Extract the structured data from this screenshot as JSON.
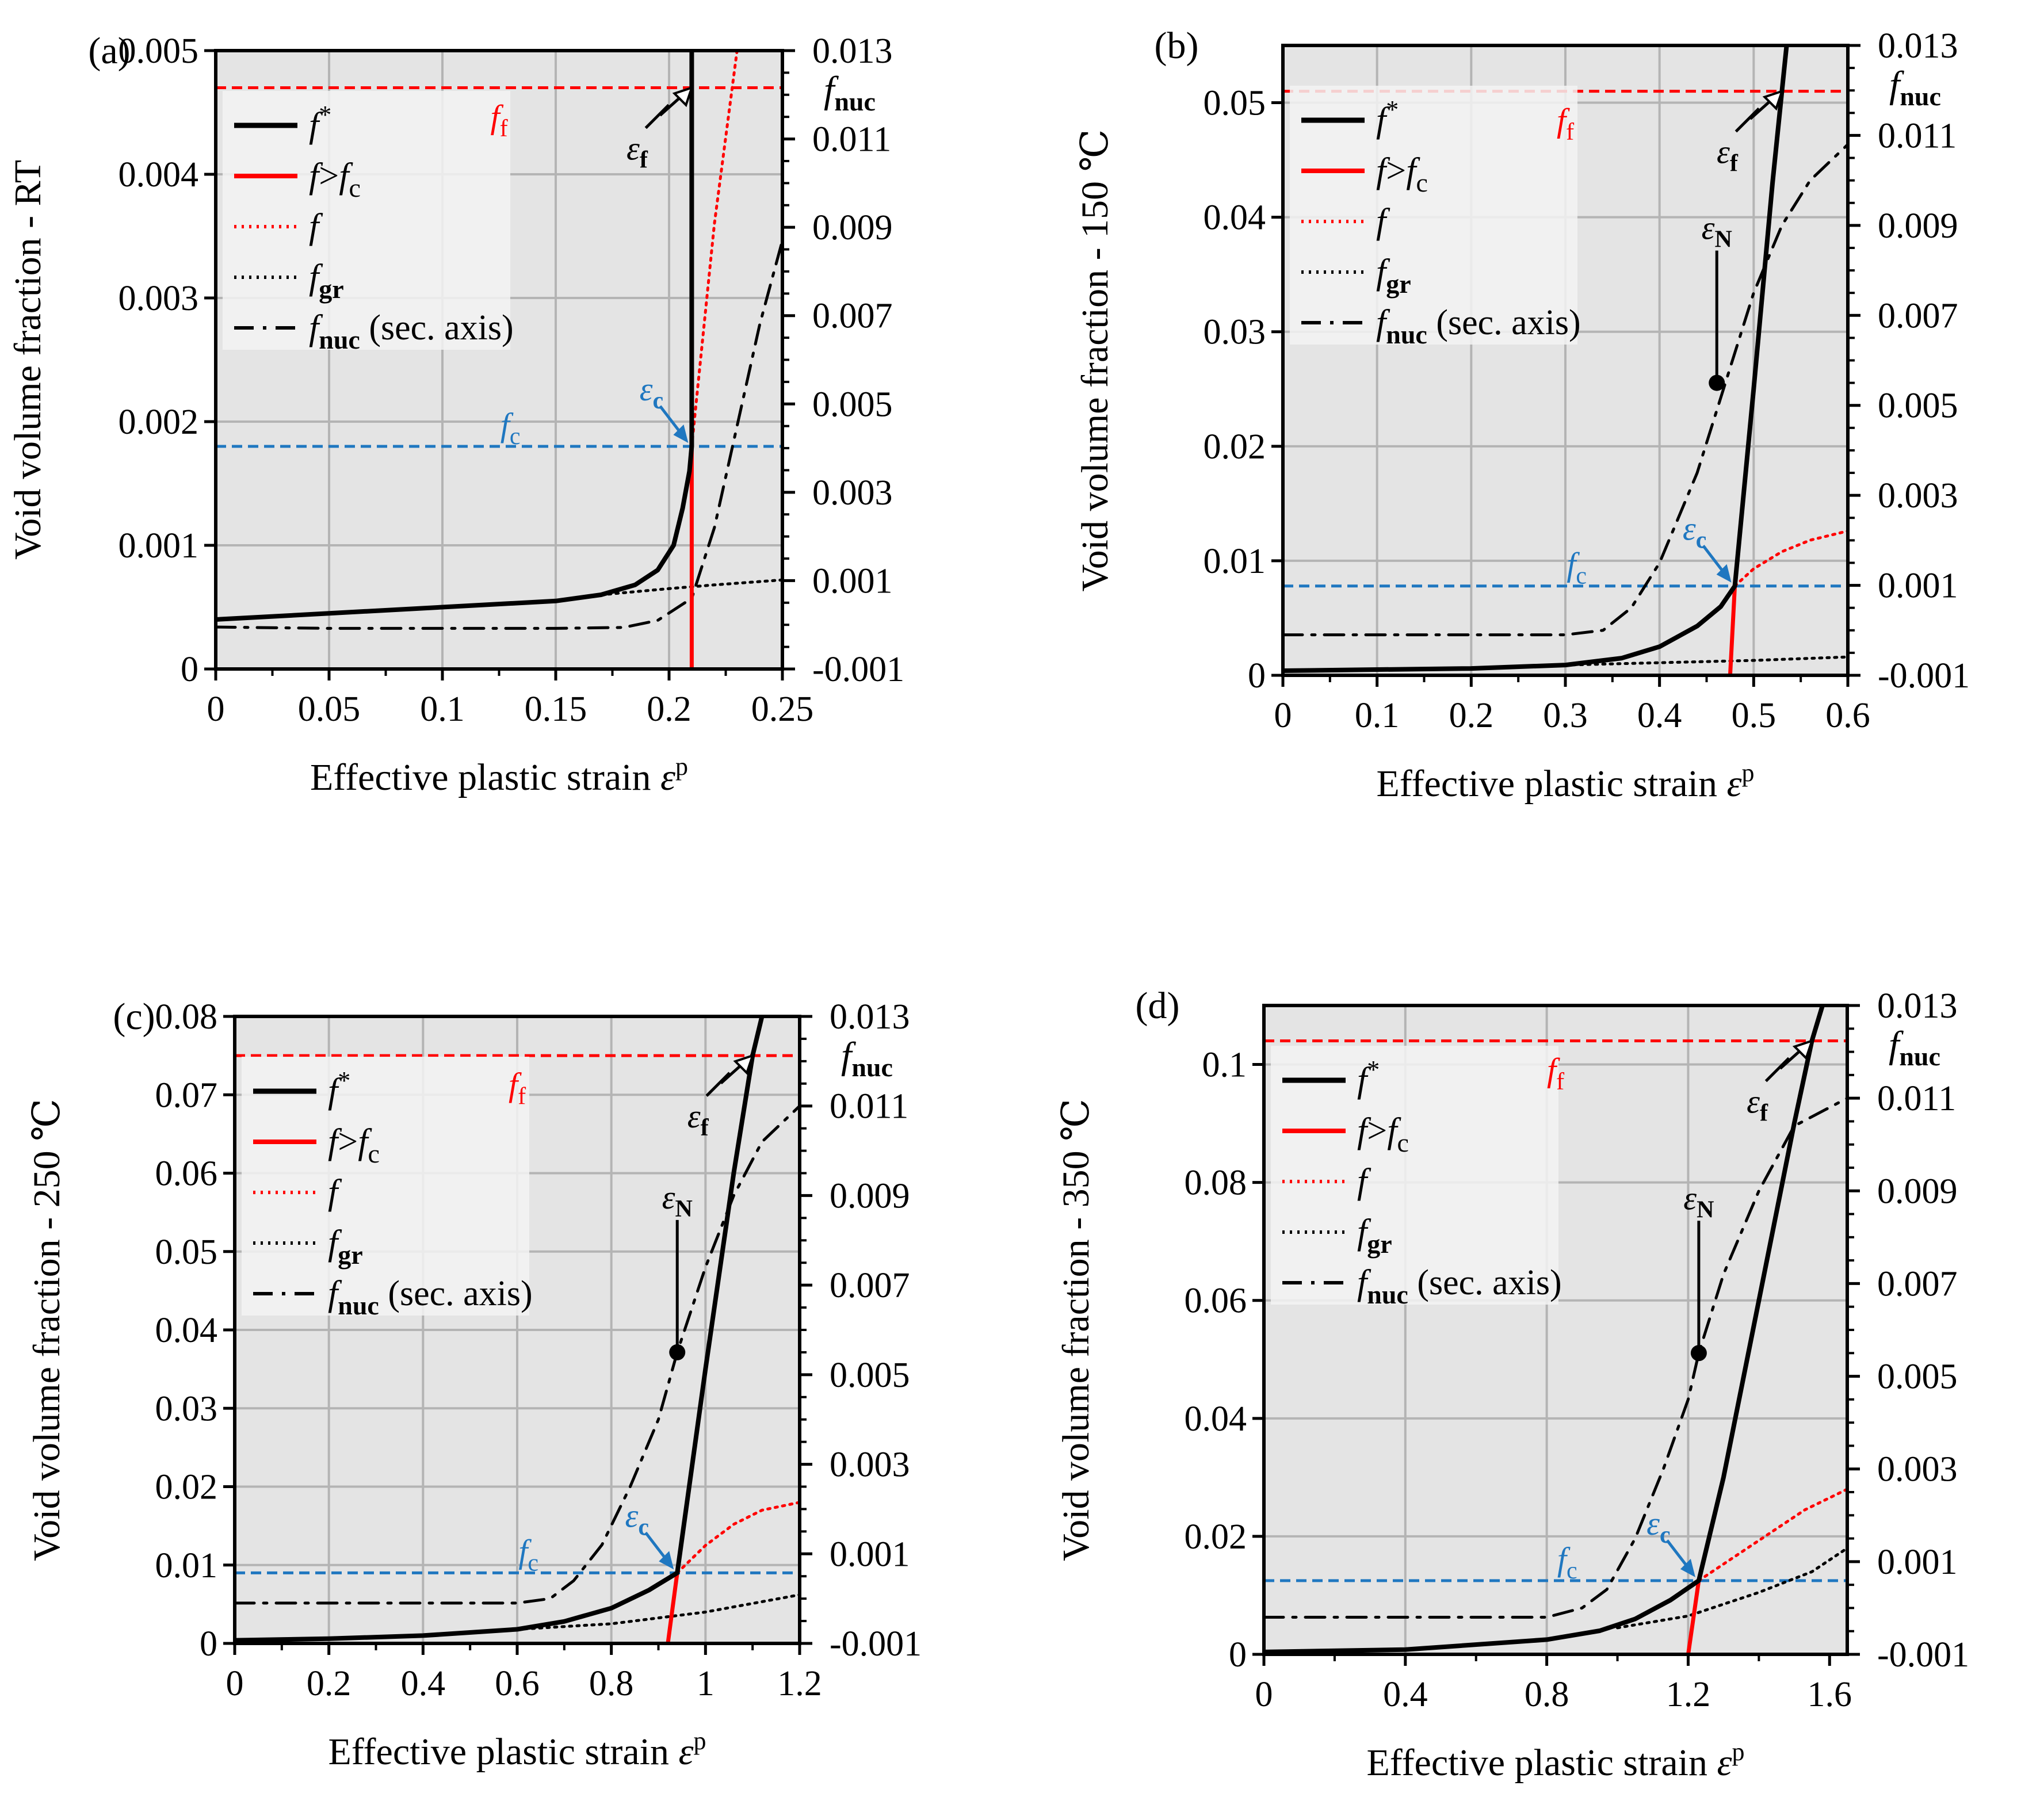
{
  "figure": {
    "xlabel": "Effective plastic strain ",
    "xlabel_symbol": "ε",
    "xlabel_sup": "p",
    "sec_axis_label": "f",
    "sec_axis_label_sub": "nuc",
    "ylabel_prefix": "Void volume fraction - ",
    "legend": [
      {
        "sym": "f",
        "sup": "*",
        "sub": "",
        "tail": "",
        "style": "solid-black"
      },
      {
        "sym": "f",
        "sup": "",
        "sub": "",
        "tail": ">f",
        "tail_sub": "c",
        "style": "solid-red"
      },
      {
        "sym": "f",
        "sup": "",
        "sub": "",
        "tail": "",
        "style": "dot-red"
      },
      {
        "sym": "f",
        "sup": "",
        "sub": "gr",
        "tail": "",
        "style": "dot-black"
      },
      {
        "sym": "f",
        "sup": "",
        "sub": "nuc",
        "tail": " (sec. axis)",
        "style": "dashdot-black"
      }
    ],
    "annotations": {
      "ff_sym": "f",
      "ff_sub": "f",
      "fc_sym": "f",
      "fc_sub": "c",
      "eps_sym": "ε",
      "eps_f_sub": "f",
      "eps_c_sub": "c",
      "eps_N_sub": "N"
    },
    "colors": {
      "black": "#000000",
      "red": "#ff0000",
      "blue": "#1f77c0",
      "plot_bg": "#e4e4e4",
      "grid": "#b4b4b4"
    }
  },
  "chart_data": [
    {
      "type": "line",
      "panel": "(a)",
      "condition": "RT",
      "xlim": [
        0,
        0.25
      ],
      "xticks": [
        "0",
        "0.05",
        "0.1",
        "0.15",
        "0.2",
        "0.25"
      ],
      "xtick_values": [
        0,
        0.05,
        0.1,
        0.15,
        0.2,
        0.25
      ],
      "ylim": [
        0,
        0.005
      ],
      "yticks": [
        "0",
        "0.001",
        "0.002",
        "0.003",
        "0.004",
        "0.005"
      ],
      "ytick_values": [
        0,
        0.001,
        0.002,
        0.003,
        0.004,
        0.005
      ],
      "y2lim": [
        -0.001,
        0.013
      ],
      "y2ticks": [
        "-0.001",
        "0.001",
        "0.003",
        "0.005",
        "0.007",
        "0.009",
        "0.011",
        "0.013"
      ],
      "ff": 0.0047,
      "fc": 0.0018,
      "eps_c": 0.21,
      "eps_f": 0.21,
      "eps_N": null,
      "series": {
        "f_star": [
          [
            0,
            0.0004
          ],
          [
            0.05,
            0.00045
          ],
          [
            0.1,
            0.0005
          ],
          [
            0.15,
            0.00055
          ],
          [
            0.17,
            0.0006
          ],
          [
            0.185,
            0.00068
          ],
          [
            0.195,
            0.0008
          ],
          [
            0.202,
            0.001
          ],
          [
            0.206,
            0.0013
          ],
          [
            0.209,
            0.0016
          ],
          [
            0.21,
            0.0018
          ],
          [
            0.21,
            0.005
          ]
        ],
        "f_gt_fc": [
          [
            0.21,
            0.0
          ],
          [
            0.21,
            0.0018
          ]
        ],
        "f": [
          [
            0.21,
            0.0018
          ],
          [
            0.215,
            0.0027
          ],
          [
            0.22,
            0.0036
          ],
          [
            0.225,
            0.0043
          ],
          [
            0.23,
            0.005
          ]
        ],
        "f_gr": [
          [
            0.17,
            0.0006
          ],
          [
            0.2,
            0.00065
          ],
          [
            0.22,
            0.00068
          ],
          [
            0.25,
            0.00072
          ]
        ],
        "f_nuc": [
          [
            0,
            -5e-05
          ],
          [
            0.05,
            -8e-05
          ],
          [
            0.1,
            -8e-05
          ],
          [
            0.15,
            -8e-05
          ],
          [
            0.18,
            -6e-05
          ],
          [
            0.195,
            0.0001
          ],
          [
            0.21,
            0.0006
          ],
          [
            0.22,
            0.0022
          ],
          [
            0.23,
            0.0045
          ],
          [
            0.24,
            0.0068
          ],
          [
            0.25,
            0.0087
          ]
        ]
      }
    },
    {
      "type": "line",
      "panel": "(b)",
      "condition": "150 ℃",
      "xlim": [
        0,
        0.6
      ],
      "xticks": [
        "0",
        "0.1",
        "0.2",
        "0.3",
        "0.4",
        "0.5",
        "0.6"
      ],
      "xtick_values": [
        0,
        0.1,
        0.2,
        0.3,
        0.4,
        0.5,
        0.6
      ],
      "ylim": [
        0,
        0.055
      ],
      "yticks": [
        "0",
        "0.01",
        "0.02",
        "0.03",
        "0.04",
        "0.05"
      ],
      "ytick_values": [
        0,
        0.01,
        0.02,
        0.03,
        0.04,
        0.05
      ],
      "y2lim": [
        -0.001,
        0.013
      ],
      "y2ticks": [
        "-0.001",
        "0.001",
        "0.003",
        "0.005",
        "0.007",
        "0.009",
        "0.011",
        "0.013"
      ],
      "ff": 0.051,
      "fc": 0.0078,
      "eps_c": 0.48,
      "eps_f": 0.53,
      "eps_N": 0.47,
      "series": {
        "f_star": [
          [
            0,
            0.0004
          ],
          [
            0.2,
            0.0006
          ],
          [
            0.3,
            0.0009
          ],
          [
            0.36,
            0.0015
          ],
          [
            0.4,
            0.0025
          ],
          [
            0.44,
            0.0043
          ],
          [
            0.465,
            0.006
          ],
          [
            0.48,
            0.0078
          ],
          [
            0.5,
            0.025
          ],
          [
            0.52,
            0.043
          ],
          [
            0.53,
            0.051
          ],
          [
            0.535,
            0.055
          ]
        ],
        "f_gt_fc": [
          [
            0.475,
            0.0
          ],
          [
            0.48,
            0.0078
          ]
        ],
        "f": [
          [
            0.48,
            0.0078
          ],
          [
            0.5,
            0.0093
          ],
          [
            0.53,
            0.0108
          ],
          [
            0.56,
            0.0118
          ],
          [
            0.6,
            0.0126
          ]
        ],
        "f_gr": [
          [
            0.3,
            0.0009
          ],
          [
            0.4,
            0.0011
          ],
          [
            0.5,
            0.0013
          ],
          [
            0.6,
            0.0016
          ]
        ],
        "f_nuc": [
          [
            0,
            -0.0001
          ],
          [
            0.1,
            -0.0001
          ],
          [
            0.2,
            -0.0001
          ],
          [
            0.3,
            -0.0001
          ],
          [
            0.34,
            0.0
          ],
          [
            0.37,
            0.0005
          ],
          [
            0.4,
            0.0015
          ],
          [
            0.44,
            0.0035
          ],
          [
            0.47,
            0.0055
          ],
          [
            0.5,
            0.0075
          ],
          [
            0.53,
            0.009
          ],
          [
            0.56,
            0.01
          ],
          [
            0.6,
            0.0108
          ]
        ]
      }
    },
    {
      "type": "line",
      "panel": "(c)",
      "condition": "250 ℃",
      "xlim": [
        0,
        1.2
      ],
      "xticks": [
        "0",
        "0.2",
        "0.4",
        "0.6",
        "0.8",
        "1",
        "1.2"
      ],
      "xtick_values": [
        0,
        0.2,
        0.4,
        0.6,
        0.8,
        1.0,
        1.2
      ],
      "ylim": [
        0,
        0.08
      ],
      "yticks": [
        "0",
        "0.01",
        "0.02",
        "0.03",
        "0.04",
        "0.05",
        "0.06",
        "0.07",
        "0.08"
      ],
      "ytick_values": [
        0,
        0.01,
        0.02,
        0.03,
        0.04,
        0.05,
        0.06,
        0.07,
        0.08
      ],
      "y2lim": [
        -0.001,
        0.013
      ],
      "y2ticks": [
        "-0.001",
        "0.001",
        "0.003",
        "0.005",
        "0.007",
        "0.009",
        "0.011",
        "0.013"
      ],
      "ff": 0.075,
      "fc": 0.009,
      "eps_c": 0.94,
      "eps_f": 1.1,
      "eps_N": 0.94,
      "series": {
        "f_star": [
          [
            0,
            0.0004
          ],
          [
            0.2,
            0.0006
          ],
          [
            0.4,
            0.001
          ],
          [
            0.6,
            0.0018
          ],
          [
            0.7,
            0.0028
          ],
          [
            0.8,
            0.0045
          ],
          [
            0.88,
            0.0068
          ],
          [
            0.94,
            0.009
          ],
          [
            1.0,
            0.035
          ],
          [
            1.06,
            0.06
          ],
          [
            1.1,
            0.075
          ],
          [
            1.12,
            0.08
          ]
        ],
        "f_gt_fc": [
          [
            0.92,
            0.0
          ],
          [
            0.94,
            0.009
          ]
        ],
        "f": [
          [
            0.94,
            0.009
          ],
          [
            1.0,
            0.0125
          ],
          [
            1.06,
            0.0152
          ],
          [
            1.12,
            0.017
          ],
          [
            1.2,
            0.018
          ]
        ],
        "f_gr": [
          [
            0.6,
            0.0018
          ],
          [
            0.8,
            0.0025
          ],
          [
            1.0,
            0.004
          ],
          [
            1.2,
            0.0062
          ]
        ],
        "f_nuc": [
          [
            0,
            -0.0001
          ],
          [
            0.2,
            -0.0001
          ],
          [
            0.4,
            -0.0001
          ],
          [
            0.6,
            -0.0001
          ],
          [
            0.67,
            0.0
          ],
          [
            0.72,
            0.0004
          ],
          [
            0.78,
            0.0012
          ],
          [
            0.84,
            0.0025
          ],
          [
            0.9,
            0.004
          ],
          [
            0.94,
            0.0055
          ],
          [
            1.0,
            0.0074
          ],
          [
            1.06,
            0.009
          ],
          [
            1.12,
            0.0102
          ],
          [
            1.2,
            0.011
          ]
        ]
      }
    },
    {
      "type": "line",
      "panel": "(d)",
      "condition": "350 ℃",
      "xlim": [
        0,
        1.65
      ],
      "xticks": [
        "0",
        "0.4",
        "0.8",
        "1.2",
        "1.6"
      ],
      "xtick_values": [
        0,
        0.4,
        0.8,
        1.2,
        1.6
      ],
      "ylim": [
        0,
        0.11
      ],
      "yticks": [
        "0",
        "0.02",
        "0.04",
        "0.06",
        "0.08",
        "0.1"
      ],
      "ytick_values": [
        0,
        0.02,
        0.04,
        0.06,
        0.08,
        0.1
      ],
      "y2lim": [
        -0.001,
        0.013
      ],
      "y2ticks": [
        "-0.001",
        "0.001",
        "0.003",
        "0.005",
        "0.007",
        "0.009",
        "0.011",
        "0.013"
      ],
      "ff": 0.104,
      "fc": 0.0125,
      "eps_c": 1.23,
      "eps_f": 1.55,
      "eps_N": 1.23,
      "series": {
        "f_star": [
          [
            0,
            0.0004
          ],
          [
            0.4,
            0.0008
          ],
          [
            0.8,
            0.0025
          ],
          [
            0.95,
            0.004
          ],
          [
            1.05,
            0.006
          ],
          [
            1.15,
            0.0092
          ],
          [
            1.23,
            0.0125
          ],
          [
            1.3,
            0.03
          ],
          [
            1.4,
            0.06
          ],
          [
            1.5,
            0.09
          ],
          [
            1.55,
            0.104
          ],
          [
            1.58,
            0.11
          ]
        ],
        "f_gt_fc": [
          [
            1.2,
            0.0
          ],
          [
            1.23,
            0.0125
          ]
        ],
        "f": [
          [
            1.23,
            0.0125
          ],
          [
            1.33,
            0.0165
          ],
          [
            1.43,
            0.0205
          ],
          [
            1.53,
            0.0245
          ],
          [
            1.65,
            0.028
          ]
        ],
        "f_gr": [
          [
            1.0,
            0.0045
          ],
          [
            1.2,
            0.0065
          ],
          [
            1.4,
            0.0105
          ],
          [
            1.55,
            0.014
          ],
          [
            1.65,
            0.018
          ]
        ],
        "f_nuc": [
          [
            0,
            -0.0002
          ],
          [
            0.4,
            -0.0002
          ],
          [
            0.8,
            -0.0002
          ],
          [
            0.9,
            0.0
          ],
          [
            0.97,
            0.0004
          ],
          [
            1.05,
            0.0015
          ],
          [
            1.13,
            0.003
          ],
          [
            1.2,
            0.0045
          ],
          [
            1.23,
            0.0055
          ],
          [
            1.3,
            0.0072
          ],
          [
            1.4,
            0.009
          ],
          [
            1.5,
            0.0104
          ],
          [
            1.65,
            0.011
          ]
        ]
      }
    }
  ]
}
